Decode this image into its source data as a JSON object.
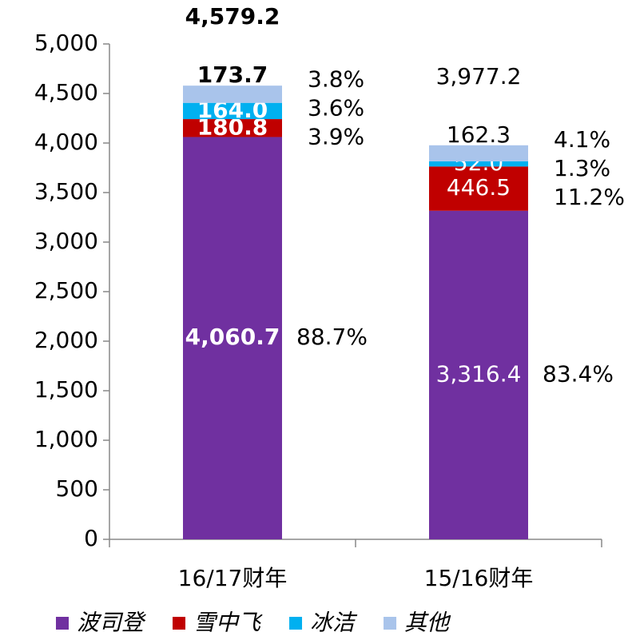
{
  "chart_data": {
    "type": "stacked_bar",
    "categories": [
      "16/17财年",
      "15/16财年"
    ],
    "series": [
      {
        "name": "波司登",
        "color": "#7030a0",
        "values": [
          4060.7,
          3316.4
        ],
        "value_labels": [
          "4,060.7",
          "3,316.4"
        ],
        "shares": [
          88.7,
          83.4
        ],
        "share_labels": [
          "88.7%",
          "83.4%"
        ]
      },
      {
        "name": "雪中飞",
        "color": "#c00000",
        "values": [
          180.8,
          446.5
        ],
        "value_labels": [
          "180.8",
          "446.5"
        ],
        "shares": [
          3.9,
          11.2
        ],
        "share_labels": [
          "3.9%",
          "11.2%"
        ]
      },
      {
        "name": "冰洁",
        "color": "#00b0f0",
        "values": [
          164.0,
          52.0
        ],
        "value_labels": [
          "164.0",
          "52.0"
        ],
        "shares": [
          3.6,
          1.3
        ],
        "share_labels": [
          "3.6%",
          "1.3%"
        ]
      },
      {
        "name": "其他",
        "color": "#a9c4eb",
        "values": [
          173.7,
          162.3
        ],
        "value_labels": [
          "173.7",
          "162.3"
        ],
        "shares": [
          3.8,
          4.1
        ],
        "share_labels": [
          "3.8%",
          "4.1%"
        ]
      }
    ],
    "totals": [
      4579.2,
      3977.2
    ],
    "total_labels": [
      "4,579.2",
      "3,977.2"
    ],
    "ylim": [
      0,
      5000
    ],
    "yticks": [
      0,
      500,
      {
        "value": 1000,
        "label": "1,000"
      },
      {
        "value": 1500,
        "label": "1,500"
      },
      {
        "value": 2000,
        "label": "2,000"
      },
      {
        "value": 2500,
        "label": "2,500"
      },
      {
        "value": 3000,
        "label": "3,000"
      },
      {
        "value": 3500,
        "label": "3,500"
      },
      {
        "value": 4000,
        "label": "4,000"
      },
      {
        "value": 4500,
        "label": "4,500"
      },
      {
        "value": 5000,
        "label": "5,000"
      }
    ],
    "legend": "bottom"
  }
}
